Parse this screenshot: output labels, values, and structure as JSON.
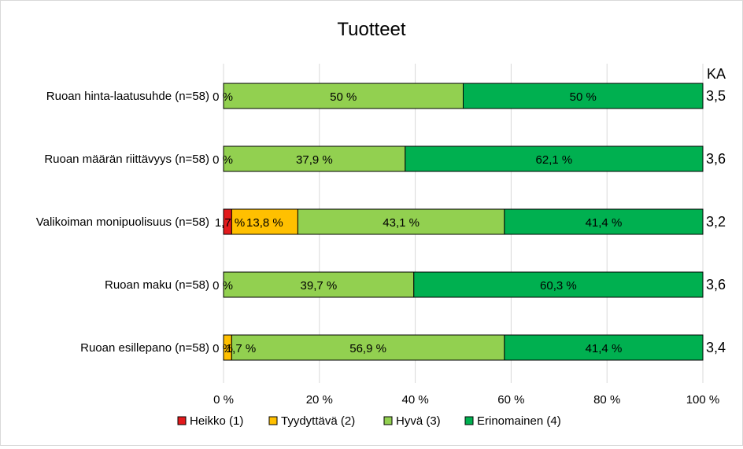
{
  "chart_data": {
    "type": "bar",
    "orientation": "horizontal",
    "stacked": "percent",
    "title": "Tuotteet",
    "categories": [
      "Ruoan hinta-laatusuhde (n=58)",
      "Ruoan määrän riittävyys (n=58)",
      "Valikoiman monipuolisuus (n=58)",
      "Ruoan maku (n=58)",
      "Ruoan esillepano (n=58)"
    ],
    "series": [
      {
        "name": "Heikko (1)",
        "color": "#e31a1c",
        "values": [
          0,
          0,
          1.7,
          0,
          0
        ],
        "labels": [
          "0 %",
          "0 %",
          "1,7 %",
          "0 %",
          "0 %"
        ]
      },
      {
        "name": "Tyydyttävä (2)",
        "color": "#ffc000",
        "values": [
          0,
          0,
          13.8,
          0,
          1.7
        ],
        "labels": [
          "",
          "",
          "13,8 %",
          "",
          "1,7 %"
        ]
      },
      {
        "name": "Hyvä (3)",
        "color": "#92d050",
        "values": [
          50,
          37.9,
          43.1,
          39.7,
          56.9
        ],
        "labels": [
          "50 %",
          "37,9 %",
          "43,1 %",
          "39,7 %",
          "56,9 %"
        ]
      },
      {
        "name": "Erinomainen (4)",
        "color": "#00b050",
        "values": [
          50,
          62.1,
          41.4,
          60.3,
          41.4
        ],
        "labels": [
          "50 %",
          "62,1 %",
          "41,4 %",
          "60,3 %",
          "41,4 %"
        ]
      }
    ],
    "x_ticks": [
      "0 %",
      "20 %",
      "40 %",
      "60 %",
      "80 %",
      "100 %"
    ],
    "xlim": [
      0,
      100
    ],
    "grid": true,
    "legend_position": "bottom",
    "ka_header": "KA",
    "ka_values": [
      "3,5",
      "3,6",
      "3,2",
      "3,6",
      "3,4"
    ]
  }
}
